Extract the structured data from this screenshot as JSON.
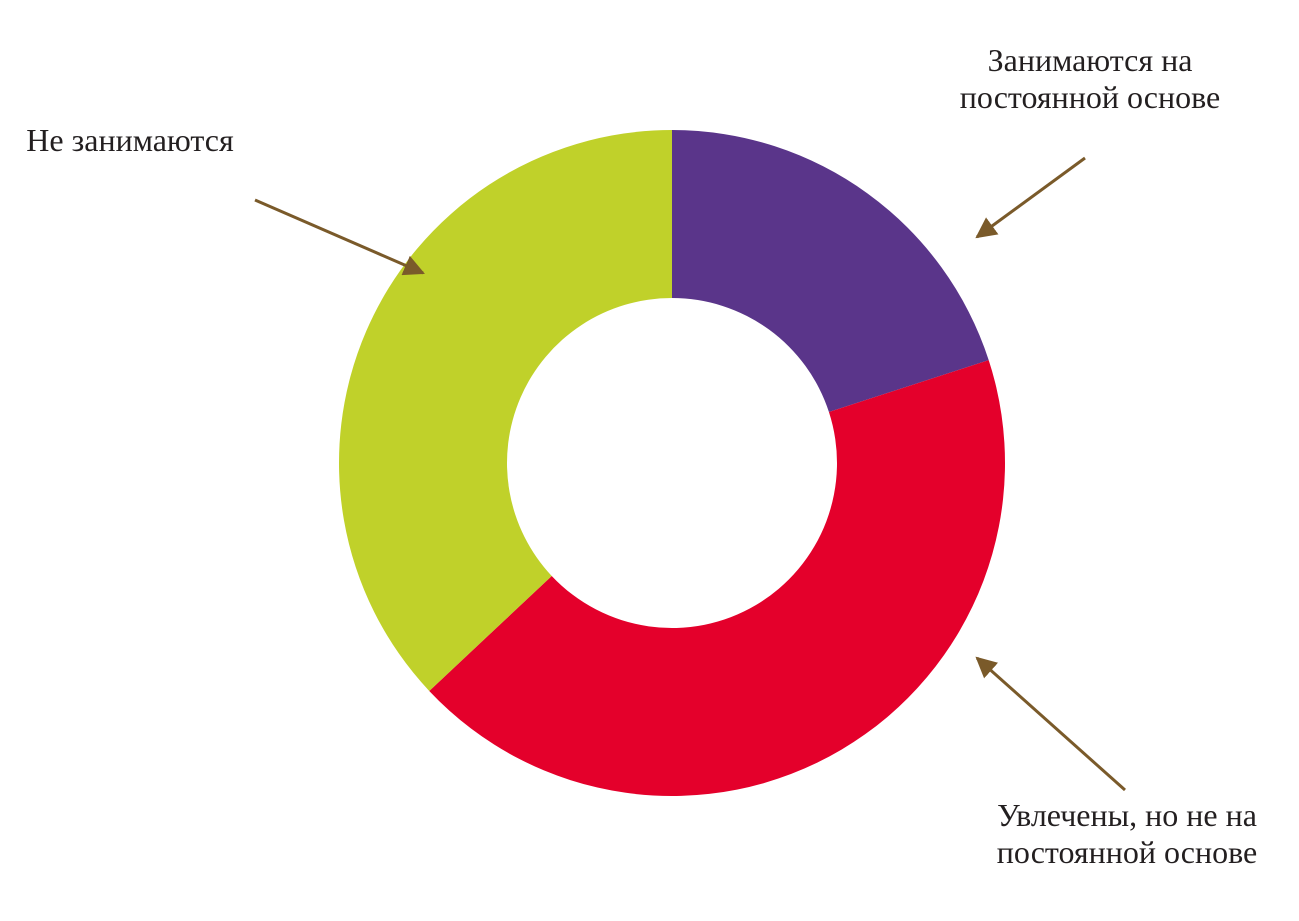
{
  "chart_data": {
    "type": "donut",
    "categories": [
      "Занимаются на постоянной основе",
      "Увлечены, но не на постоянной основе",
      "Не занимаются"
    ],
    "values": [
      20,
      43,
      37
    ],
    "colors": [
      "#5a358a",
      "#e4002b",
      "#c0d12a"
    ]
  }
}
